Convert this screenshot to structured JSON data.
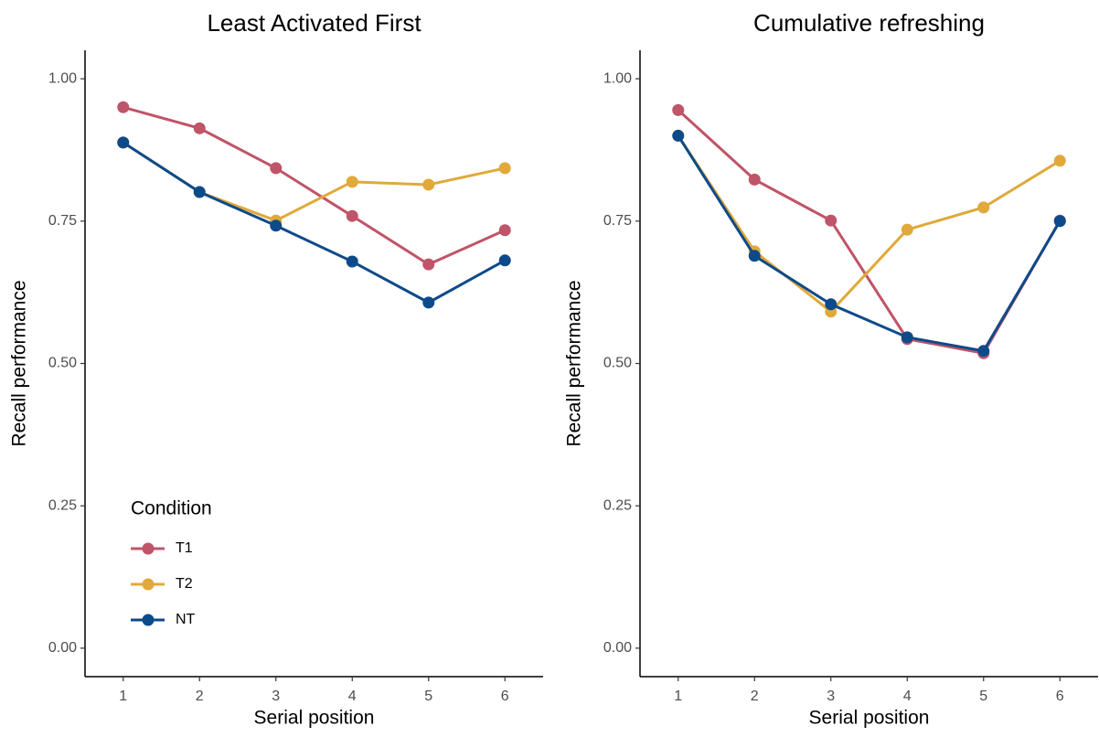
{
  "chart_data": [
    {
      "type": "line",
      "title": "Least Activated First",
      "xlabel": "Serial position",
      "ylabel": "Recall performance",
      "x": [
        1,
        2,
        3,
        4,
        5,
        6
      ],
      "xlim": [
        0.5,
        6.5
      ],
      "xticks": [
        1,
        2,
        3,
        4,
        5,
        6
      ],
      "ylim": [
        -0.05,
        1.05
      ],
      "yticks": [
        {
          "value": 0,
          "label": "0.00"
        },
        {
          "value": 0.25,
          "label": "0.25"
        },
        {
          "value": 0.5,
          "label": "0.50"
        },
        {
          "value": 0.75,
          "label": "0.75"
        },
        {
          "value": 1,
          "label": "1.00"
        }
      ],
      "legend": "bottom-left",
      "legend_title": "Condition",
      "series": [
        {
          "name": "T1",
          "color": "#c05468",
          "values": [
            0.95,
            0.913,
            0.843,
            0.759,
            0.674,
            0.734
          ]
        },
        {
          "name": "T2",
          "color": "#e0a93a",
          "values": [
            0.888,
            0.801,
            0.751,
            0.819,
            0.814,
            0.843
          ]
        },
        {
          "name": "NT",
          "color": "#0d4a8a",
          "values": [
            0.888,
            0.801,
            0.742,
            0.679,
            0.607,
            0.681
          ]
        }
      ]
    },
    {
      "type": "line",
      "title": "Cumulative refreshing",
      "xlabel": "Serial position",
      "ylabel": "Recall performance",
      "x": [
        1,
        2,
        3,
        4,
        5,
        6
      ],
      "xlim": [
        0.5,
        6.5
      ],
      "xticks": [
        1,
        2,
        3,
        4,
        5,
        6
      ],
      "ylim": [
        -0.05,
        1.05
      ],
      "yticks": [
        {
          "value": 0,
          "label": "0.00"
        },
        {
          "value": 0.25,
          "label": "0.25"
        },
        {
          "value": 0.5,
          "label": "0.50"
        },
        {
          "value": 0.75,
          "label": "0.75"
        },
        {
          "value": 1,
          "label": "1.00"
        }
      ],
      "series": [
        {
          "color": "#c05468",
          "values": [
            0.945,
            0.823,
            0.751,
            0.543,
            0.518,
            0.751
          ]
        },
        {
          "color": "#e0a93a",
          "values": [
            0.9,
            0.697,
            0.591,
            0.735,
            0.774,
            0.856
          ]
        },
        {
          "color": "#0d4a8a",
          "values": [
            0.9,
            0.689,
            0.604,
            0.546,
            0.522,
            0.75
          ]
        }
      ]
    }
  ]
}
